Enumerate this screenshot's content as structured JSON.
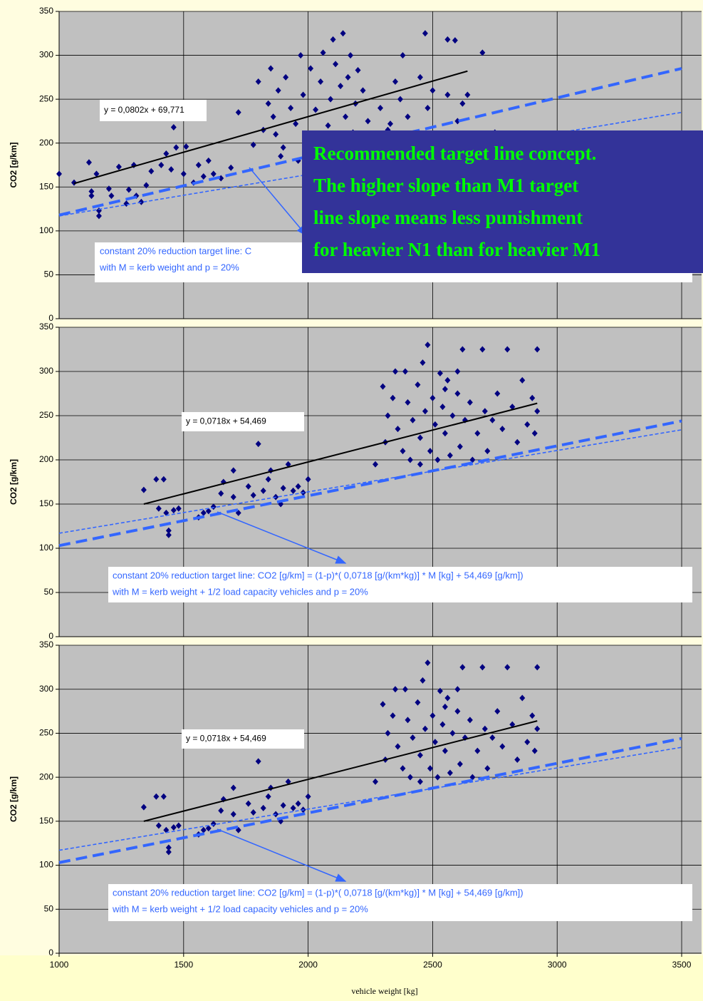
{
  "chart_data": [
    {
      "type": "scatter",
      "ylabel": "CO2 [g/km]",
      "ylim": [
        0,
        350
      ],
      "yticks": [
        0,
        50,
        100,
        150,
        200,
        250,
        300,
        350
      ],
      "grid": true,
      "series": [
        {
          "color": "#000080",
          "x": [
            1000,
            1060,
            1120,
            1130,
            1130,
            1150,
            1160,
            1160,
            1200,
            1210,
            1240,
            1270,
            1280,
            1300,
            1310,
            1330,
            1350,
            1370,
            1410,
            1430,
            1450,
            1460,
            1470,
            1500,
            1510,
            1540,
            1560,
            1580,
            1600,
            1620,
            1650,
            1690,
            1720,
            1780,
            1800,
            1820,
            1840,
            1850,
            1860,
            1870,
            1880,
            1900,
            1910,
            1930,
            1950,
            1970,
            1980,
            2000,
            2010,
            2030,
            2050,
            2060,
            2080,
            2090,
            2100,
            2110,
            2120,
            2130,
            2140,
            2150,
            2160,
            2170,
            2180,
            2190,
            2200,
            2220,
            2240,
            2260,
            2290,
            2320,
            2330,
            2350,
            2380,
            2400,
            2420,
            2450,
            2470,
            2480,
            2500,
            2520,
            2560,
            2590,
            2560,
            2600,
            2620,
            2640,
            2700,
            2750,
            2370,
            1960,
            1890,
            2010
          ],
          "values": [
            165,
            155,
            178,
            145,
            140,
            165,
            117,
            123,
            148,
            140,
            173,
            131,
            147,
            175,
            140,
            133,
            152,
            168,
            175,
            188,
            170,
            218,
            195,
            165,
            196,
            155,
            175,
            162,
            180,
            165,
            160,
            172,
            235,
            198,
            270,
            215,
            245,
            285,
            230,
            210,
            260,
            195,
            275,
            240,
            222,
            300,
            255,
            203,
            285,
            238,
            270,
            303,
            220,
            250,
            318,
            290,
            205,
            265,
            325,
            230,
            275,
            300,
            212,
            245,
            283,
            260,
            225,
            205,
            240,
            215,
            222,
            270,
            300,
            230,
            210,
            275,
            325,
            240,
            260,
            205,
            318,
            317,
            255,
            225,
            245,
            255,
            303,
            212,
            250,
            180,
            185,
            196
          ]
        }
      ],
      "lines": [
        {
          "color": "#000000",
          "dash": "solid",
          "x": [
            1060,
            2640
          ],
          "values": [
            154,
            282
          ]
        },
        {
          "color": "#3366ff",
          "dash": "long",
          "x": [
            1000,
            3500
          ],
          "values": [
            118,
            285
          ]
        },
        {
          "color": "#3366ff",
          "dash": "short",
          "x": [
            1000,
            3500
          ],
          "values": [
            117,
            235
          ]
        }
      ],
      "equation": "y = 0,0802x + 69,771",
      "note": [
        "constant 20% reduction target line: C",
        "with M = kerb weight and p = 20%"
      ],
      "callout": [
        "Recommended target line concept.",
        "The higher slope than M1 target",
        "line slope means less punishment",
        "for heavier N1 than for heavier M1"
      ]
    },
    {
      "type": "scatter",
      "ylabel": "CO2 [g/km]",
      "ylim": [
        0,
        350
      ],
      "yticks": [
        0,
        50,
        100,
        150,
        200,
        250,
        300,
        350
      ],
      "grid": true,
      "series": [
        {
          "color": "#000080",
          "x": [
            1340,
            1390,
            1400,
            1420,
            1430,
            1440,
            1440,
            1460,
            1480,
            1560,
            1580,
            1600,
            1620,
            1650,
            1660,
            1700,
            1700,
            1720,
            1760,
            1780,
            1800,
            1820,
            1840,
            1850,
            1870,
            1890,
            1900,
            1920,
            1940,
            1960,
            1980,
            2000,
            2270,
            2300,
            2310,
            2320,
            2340,
            2360,
            2380,
            2390,
            2400,
            2410,
            2420,
            2440,
            2450,
            2460,
            2470,
            2480,
            2490,
            2500,
            2510,
            2520,
            2530,
            2540,
            2550,
            2560,
            2570,
            2580,
            2600,
            2610,
            2620,
            2630,
            2650,
            2660,
            2680,
            2700,
            2710,
            2720,
            2740,
            2760,
            2780,
            2800,
            2820,
            2840,
            2860,
            2880,
            2900,
            2920,
            2920,
            2910,
            2600,
            2350,
            2450,
            2550
          ],
          "values": [
            166,
            178,
            145,
            178,
            140,
            120,
            115,
            143,
            145,
            135,
            140,
            142,
            147,
            162,
            175,
            158,
            188,
            140,
            170,
            160,
            218,
            165,
            178,
            188,
            158,
            150,
            168,
            195,
            165,
            170,
            163,
            178,
            195,
            283,
            220,
            250,
            270,
            235,
            210,
            300,
            265,
            200,
            245,
            285,
            225,
            310,
            255,
            330,
            210,
            270,
            240,
            200,
            298,
            260,
            230,
            290,
            205,
            250,
            275,
            215,
            325,
            245,
            265,
            200,
            230,
            325,
            255,
            210,
            245,
            275,
            235,
            325,
            260,
            220,
            290,
            240,
            270,
            325,
            255,
            230,
            300,
            300,
            195,
            280
          ]
        }
      ],
      "lines": [
        {
          "color": "#000000",
          "dash": "solid",
          "x": [
            1340,
            2920
          ],
          "values": [
            150,
            264
          ]
        },
        {
          "color": "#3366ff",
          "dash": "long",
          "x": [
            1000,
            3500
          ],
          "values": [
            103,
            244
          ]
        },
        {
          "color": "#3366ff",
          "dash": "short",
          "x": [
            1000,
            3500
          ],
          "values": [
            117,
            234
          ]
        }
      ],
      "equation": "y = 0,0718x + 54,469",
      "note": [
        "constant 20% reduction target line: CO2 [g/km]  = (1-p)*( 0,0718 [g/(km*kg)] * M [kg] + 54,469 [g/km])",
        "with M = kerb weight + 1/2 load capacity vehicles and p = 20%"
      ]
    },
    {
      "type": "scatter",
      "ylabel": "CO2 [g/km]",
      "ylim": [
        0,
        350
      ],
      "yticks": [
        0,
        50,
        100,
        150,
        200,
        250,
        300,
        350
      ],
      "grid": true,
      "xlabel": "vehicle weight [kg]",
      "xlim": [
        1000,
        3580
      ],
      "xticks": [
        1000,
        1500,
        2000,
        2500,
        3000,
        3500
      ],
      "series": [
        {
          "color": "#000080",
          "x": [
            1340,
            1390,
            1400,
            1420,
            1430,
            1440,
            1440,
            1460,
            1480,
            1560,
            1580,
            1600,
            1620,
            1650,
            1660,
            1700,
            1700,
            1720,
            1760,
            1780,
            1800,
            1820,
            1840,
            1850,
            1870,
            1890,
            1900,
            1920,
            1940,
            1960,
            1980,
            2000,
            2270,
            2300,
            2310,
            2320,
            2340,
            2360,
            2380,
            2390,
            2400,
            2410,
            2420,
            2440,
            2450,
            2460,
            2470,
            2480,
            2490,
            2500,
            2510,
            2520,
            2530,
            2540,
            2550,
            2560,
            2570,
            2580,
            2600,
            2610,
            2620,
            2630,
            2650,
            2660,
            2680,
            2700,
            2710,
            2720,
            2740,
            2760,
            2780,
            2800,
            2820,
            2840,
            2860,
            2880,
            2900,
            2920,
            2920,
            2910,
            2600,
            2350,
            2450,
            2550
          ],
          "values": [
            166,
            178,
            145,
            178,
            140,
            120,
            115,
            143,
            145,
            135,
            140,
            142,
            147,
            162,
            175,
            158,
            188,
            140,
            170,
            160,
            218,
            165,
            178,
            188,
            158,
            150,
            168,
            195,
            165,
            170,
            163,
            178,
            195,
            283,
            220,
            250,
            270,
            235,
            210,
            300,
            265,
            200,
            245,
            285,
            225,
            310,
            255,
            330,
            210,
            270,
            240,
            200,
            298,
            260,
            230,
            290,
            205,
            250,
            275,
            215,
            325,
            245,
            265,
            200,
            230,
            325,
            255,
            210,
            245,
            275,
            235,
            325,
            260,
            220,
            290,
            240,
            270,
            325,
            255,
            230,
            300,
            300,
            195,
            280
          ]
        }
      ],
      "lines": [
        {
          "color": "#000000",
          "dash": "solid",
          "x": [
            1340,
            2920
          ],
          "values": [
            150,
            264
          ]
        },
        {
          "color": "#3366ff",
          "dash": "long",
          "x": [
            1000,
            3500
          ],
          "values": [
            103,
            244
          ]
        },
        {
          "color": "#3366ff",
          "dash": "short",
          "x": [
            1000,
            3500
          ],
          "values": [
            117,
            234
          ]
        }
      ],
      "equation": "y = 0,0718x + 54,469",
      "note": [
        "constant 20% reduction target line: CO2 [g/km]  = (1-p)*( 0,0718 [g/(km*kg)] * M [kg] + 54,469 [g/km])",
        "with M = kerb weight + 1/2 load capacity vehicles and p = 20%"
      ]
    }
  ]
}
